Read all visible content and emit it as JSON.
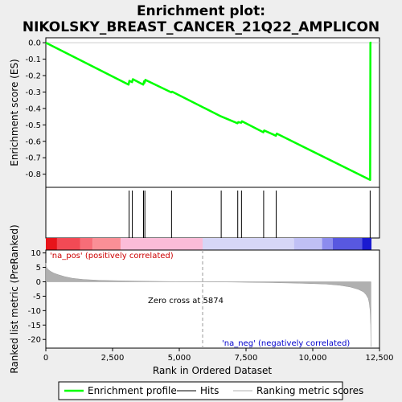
{
  "chart_data": {
    "type": "line",
    "title_line1": "Enrichment plot:",
    "title_line2": "NIKOLSKY_BREAST_CANCER_21Q22_AMPLICON",
    "es_ylabel": "Enrichment score (ES)",
    "metric_ylabel": "Ranked list metric (PreRanked)",
    "xlabel": "Rank in Ordered Dataset",
    "xlim": [
      0,
      12500
    ],
    "x_ticks": [
      0,
      2500,
      5000,
      7500,
      10000,
      12500
    ],
    "x_tick_labels": [
      "0",
      "2,500",
      "5,000",
      "7,500",
      "10,000",
      "12,500"
    ],
    "es_ylim": [
      -0.88,
      0.03
    ],
    "es_ticks": [
      0.0,
      -0.1,
      -0.2,
      -0.3,
      -0.4,
      -0.5,
      -0.6,
      -0.7,
      -0.8
    ],
    "es_tick_labels": [
      "0.0",
      "-0.1",
      "-0.2",
      "-0.3",
      "-0.4",
      "-0.5",
      "-0.6",
      "-0.7",
      "-0.8"
    ],
    "metric_ylim": [
      -23,
      11
    ],
    "metric_ticks": [
      10,
      5,
      0,
      -5,
      -10,
      -15,
      -20
    ],
    "metric_tick_labels": [
      "10",
      "5",
      "0",
      "-5",
      "-10",
      "-15",
      "-20"
    ],
    "enrichment_profile": {
      "name": "Enrichment profile",
      "color": "#00ff00",
      "x": [
        0,
        3100,
        3130,
        3230,
        3260,
        3650,
        3680,
        3700,
        3730,
        4700,
        4730,
        6560,
        7180,
        7210,
        7320,
        7350,
        8150,
        8180,
        8620,
        8650,
        12150,
        12160,
        12200
      ],
      "y": [
        0.0,
        -0.255,
        -0.232,
        -0.24,
        -0.222,
        -0.255,
        -0.235,
        -0.243,
        -0.226,
        -0.302,
        -0.298,
        -0.448,
        -0.49,
        -0.483,
        -0.487,
        -0.478,
        -0.545,
        -0.534,
        -0.566,
        -0.553,
        -0.835,
        0.0,
        0.0
      ]
    },
    "hits": {
      "name": "Hits",
      "x": [
        3120,
        3240,
        3660,
        3710,
        4710,
        6570,
        7190,
        7330,
        8160,
        8630,
        12150
      ]
    },
    "ranking_metric": {
      "name": "Ranking metric scores",
      "x": [
        0,
        20,
        60,
        120,
        200,
        300,
        450,
        700,
        1000,
        1400,
        2000,
        3000,
        4000,
        5000,
        5874,
        7000,
        8500,
        9500,
        10500,
        11000,
        11400,
        11700,
        11900,
        12000,
        12080,
        12120,
        12150,
        12170,
        12180
      ],
      "y": [
        6.5,
        5.2,
        4.5,
        4.0,
        3.5,
        3.0,
        2.5,
        1.8,
        1.2,
        0.8,
        0.5,
        0.3,
        0.15,
        0.05,
        0.0,
        -0.1,
        -0.3,
        -0.5,
        -0.8,
        -1.2,
        -1.8,
        -2.6,
        -3.5,
        -4.5,
        -5.8,
        -7.5,
        -10,
        -15,
        -22.5
      ]
    },
    "annotations": {
      "pos_label": "'na_pos' (positively correlated)",
      "neg_label": "'na_neg' (negatively correlated)",
      "zero_cross": "Zero cross at 5874",
      "zero_cross_x": 5874,
      "pos_color": "#cc0000",
      "neg_color": "#0000cc"
    },
    "heat_bar": {
      "segments": [
        {
          "x0": 0,
          "x1": 420,
          "color": "#e8141a"
        },
        {
          "x0": 420,
          "x1": 1280,
          "color": "#f24a55"
        },
        {
          "x0": 1280,
          "x1": 1750,
          "color": "#f76d78"
        },
        {
          "x0": 1750,
          "x1": 2800,
          "color": "#fa8f96"
        },
        {
          "x0": 2800,
          "x1": 5874,
          "color": "#fbbcd8"
        },
        {
          "x0": 5874,
          "x1": 9300,
          "color": "#d6d6f7"
        },
        {
          "x0": 9300,
          "x1": 10350,
          "color": "#c0c0f5"
        },
        {
          "x0": 10350,
          "x1": 10750,
          "color": "#8c8cee"
        },
        {
          "x0": 10750,
          "x1": 11850,
          "color": "#5858e0"
        },
        {
          "x0": 11850,
          "x1": 12200,
          "color": "#1a1ad0"
        }
      ]
    },
    "legend": [
      {
        "label": "Enrichment profile",
        "color": "#00ff00"
      },
      {
        "label": "Hits",
        "color": "#000000"
      },
      {
        "label": "Ranking metric scores",
        "color": "#b0b0b0"
      }
    ],
    "legend_position": "bottom"
  }
}
